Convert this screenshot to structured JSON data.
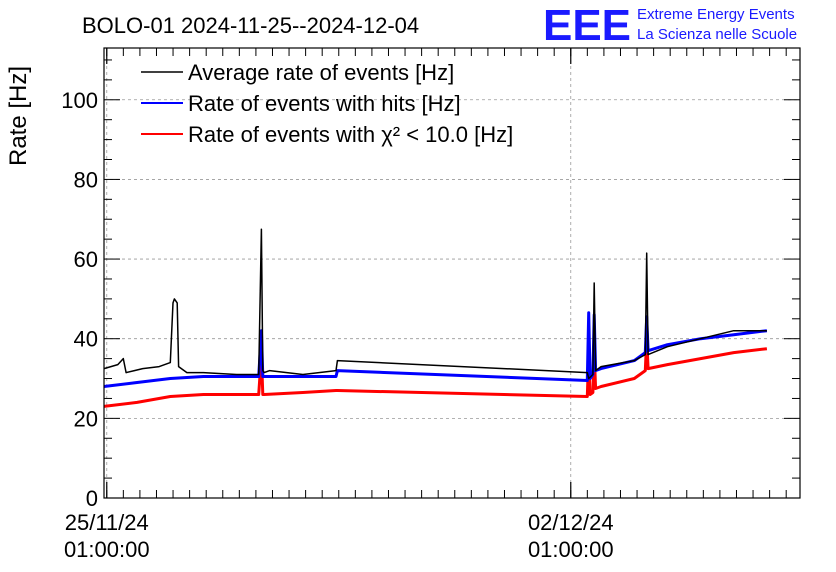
{
  "logo": {
    "mark": "EEE",
    "line1": "Extreme Energy Events",
    "line2": "La Scienza nelle Scuole",
    "color": "#1a1aff"
  },
  "chart_data": {
    "type": "line",
    "title": "BOLO-01 2024-11-25--2024-12-04",
    "ylabel": "Rate [Hz]",
    "xlabel": "",
    "ylim": [
      0,
      113
    ],
    "yticks": [
      0,
      20,
      40,
      60,
      80,
      100
    ],
    "ytick_labels": [
      "0",
      "20",
      "40",
      "60",
      "80",
      "100"
    ],
    "xlim": [
      "2024-11-25T00:00",
      "2024-12-05T12:00"
    ],
    "xticks": [
      "2024-11-25T01:00",
      "2024-12-02T01:00"
    ],
    "xtick_labels": [
      [
        "25/11/24",
        "01:00:00"
      ],
      [
        "02/12/24",
        "01:00:00"
      ]
    ],
    "grid": true,
    "legend_position": "top-left",
    "series": [
      {
        "name": "Average rate of events [Hz]",
        "color": "#000000",
        "x": [
          "2024-11-25T00:00",
          "2024-11-25T05:00",
          "2024-11-25T07:00",
          "2024-11-25T08:00",
          "2024-11-25T11:00",
          "2024-11-25T14:00",
          "2024-11-25T20:00",
          "2024-11-26T00:00",
          "2024-11-26T01:00",
          "2024-11-26T01:30",
          "2024-11-26T02:30",
          "2024-11-26T03:00",
          "2024-11-26T06:00",
          "2024-11-26T12:00",
          "2024-11-27T00:00",
          "2024-11-27T08:00",
          "2024-11-27T09:00",
          "2024-11-27T09:30",
          "2024-11-27T10:00",
          "2024-11-27T12:00",
          "2024-11-28T00:00",
          "2024-11-28T12:00",
          "2024-11-28T12:30",
          "2024-12-02T07:00",
          "2024-12-02T07:30",
          "2024-12-02T09:00",
          "2024-12-02T09:30",
          "2024-12-02T10:00",
          "2024-12-02T12:00",
          "2024-12-03T00:00",
          "2024-12-03T04:00",
          "2024-12-03T04:30",
          "2024-12-03T05:00",
          "2024-12-03T12:00",
          "2024-12-04T00:00",
          "2024-12-04T12:00",
          "2024-12-05T00:00"
        ],
        "values": [
          32.5,
          33.5,
          35,
          31.5,
          32,
          32.5,
          33,
          34,
          49,
          50,
          49,
          33,
          31.5,
          31.5,
          31,
          31,
          67.5,
          32,
          31.5,
          32,
          31,
          32,
          34.5,
          31.5,
          30,
          31,
          54,
          32,
          33,
          34.5,
          36,
          61.5,
          36,
          38,
          40,
          42,
          42
        ]
      },
      {
        "name": "Rate of events with hits [Hz]",
        "color": "#0000ff",
        "x": [
          "2024-11-25T00:00",
          "2024-11-25T12:00",
          "2024-11-26T00:00",
          "2024-11-26T12:00",
          "2024-11-27T00:00",
          "2024-11-27T08:00",
          "2024-11-27T09:00",
          "2024-11-27T09:30",
          "2024-11-27T10:00",
          "2024-11-28T00:00",
          "2024-11-28T12:00",
          "2024-11-28T12:30",
          "2024-12-02T07:00",
          "2024-12-02T07:30",
          "2024-12-02T08:00",
          "2024-12-02T09:00",
          "2024-12-02T09:30",
          "2024-12-02T10:00",
          "2024-12-02T12:00",
          "2024-12-03T00:00",
          "2024-12-03T04:00",
          "2024-12-03T04:30",
          "2024-12-03T05:00",
          "2024-12-03T12:00",
          "2024-12-04T00:00",
          "2024-12-04T12:00",
          "2024-12-05T00:00"
        ],
        "values": [
          28,
          29,
          30,
          30.5,
          30.5,
          30.5,
          42,
          30.5,
          30.5,
          30.5,
          30.5,
          32,
          29.5,
          46.5,
          30,
          31,
          46,
          32,
          32.5,
          34.5,
          36.5,
          45.5,
          37,
          38.5,
          40,
          41,
          42
        ]
      },
      {
        "name": "Rate of events with χ² < 10.0 [Hz]",
        "color": "#ff0000",
        "x": [
          "2024-11-25T00:00",
          "2024-11-25T12:00",
          "2024-11-26T00:00",
          "2024-11-26T12:00",
          "2024-11-27T00:00",
          "2024-11-27T08:00",
          "2024-11-27T09:00",
          "2024-11-27T09:30",
          "2024-11-27T10:00",
          "2024-11-28T00:00",
          "2024-11-28T12:00",
          "2024-11-28T12:30",
          "2024-12-02T07:00",
          "2024-12-02T07:30",
          "2024-12-02T08:00",
          "2024-12-02T09:00",
          "2024-12-02T09:30",
          "2024-12-02T10:00",
          "2024-12-02T12:00",
          "2024-12-03T00:00",
          "2024-12-03T04:00",
          "2024-12-03T04:30",
          "2024-12-03T05:00",
          "2024-12-03T12:00",
          "2024-12-04T00:00",
          "2024-12-04T12:00",
          "2024-12-05T00:00"
        ],
        "values": [
          23,
          24,
          25.5,
          26,
          26,
          26,
          36,
          26,
          26,
          26.5,
          27,
          27,
          25.5,
          36,
          26,
          26.5,
          37,
          27.5,
          28,
          30,
          32,
          40,
          32.5,
          33.5,
          35,
          36.5,
          37.5
        ]
      }
    ]
  }
}
